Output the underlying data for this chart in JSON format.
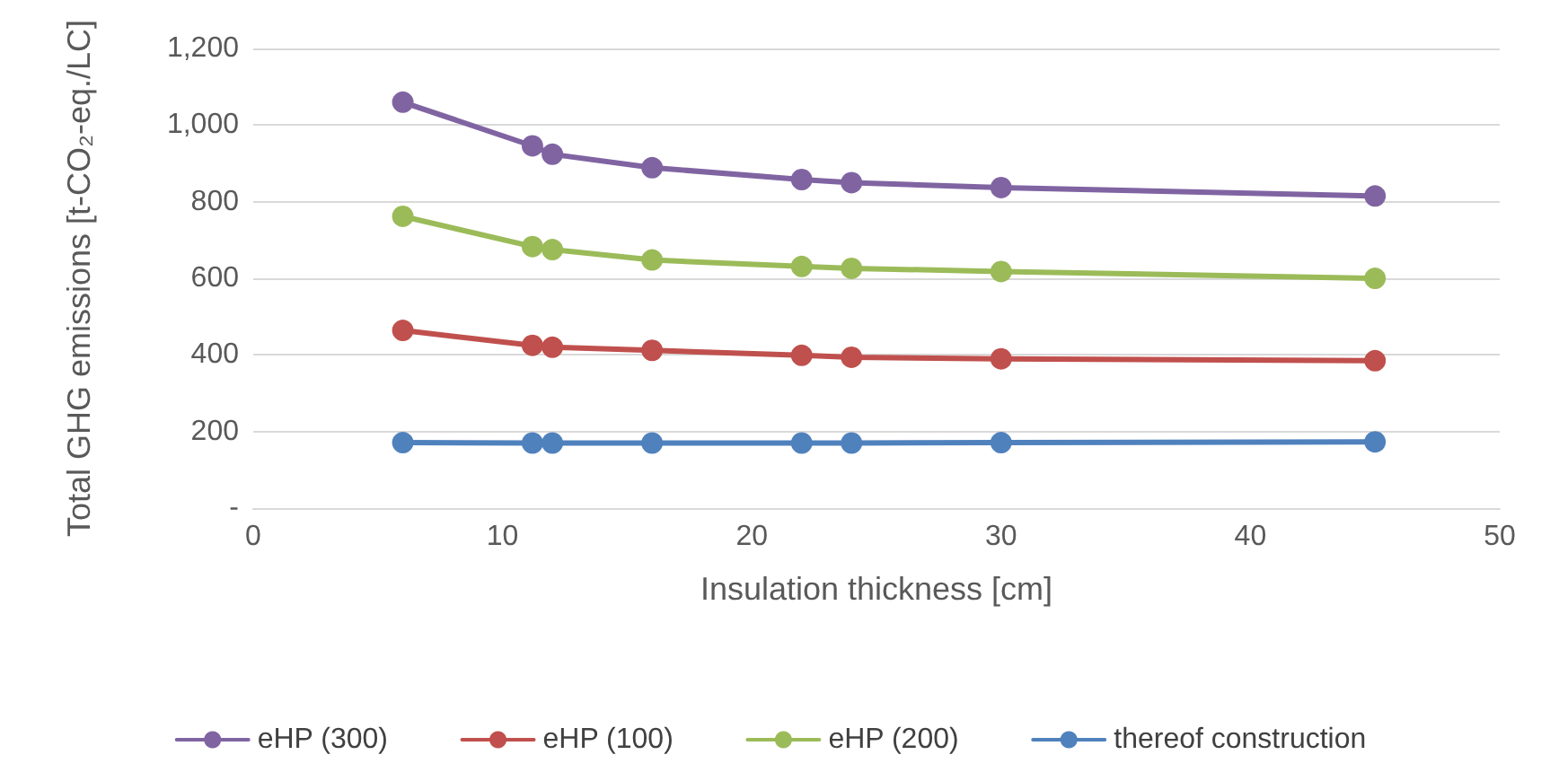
{
  "chart_data": {
    "type": "line",
    "xlabel": "Insulation thickness [cm]",
    "ylabel": "Total GHG emissions [t-CO₂-eq./LC]",
    "x": [
      6,
      11.2,
      12,
      16,
      22,
      24,
      30,
      45
    ],
    "series": [
      {
        "name": "eHP (300)",
        "color": "#8064a2",
        "values": [
          1060,
          946,
          924,
          889,
          858,
          850,
          837,
          815
        ]
      },
      {
        "name": "eHP (100)",
        "color": "#c0504d",
        "values": [
          464,
          425,
          420,
          412,
          399,
          394,
          390,
          385
        ]
      },
      {
        "name": "eHP (200)",
        "color": "#9bbb59",
        "values": [
          762,
          683,
          675,
          648,
          631,
          626,
          618,
          600
        ]
      },
      {
        "name": "thereof construction",
        "color": "#4f81bd",
        "values": [
          171,
          170,
          170,
          170,
          170,
          170,
          171,
          173
        ]
      }
    ],
    "xlim": [
      0,
      50
    ],
    "xticks": [
      0,
      10,
      20,
      30,
      40,
      50
    ],
    "ylim": [
      0,
      1200
    ],
    "yticks": [
      {
        "value": 0,
        "label": "-"
      },
      200,
      400,
      600,
      800,
      {
        "value": 1000,
        "label": "1,000"
      },
      {
        "value": 1200,
        "label": "1,200"
      }
    ],
    "grid": "y",
    "legend": "bottom",
    "marker": "circle",
    "line_style": "solid"
  }
}
